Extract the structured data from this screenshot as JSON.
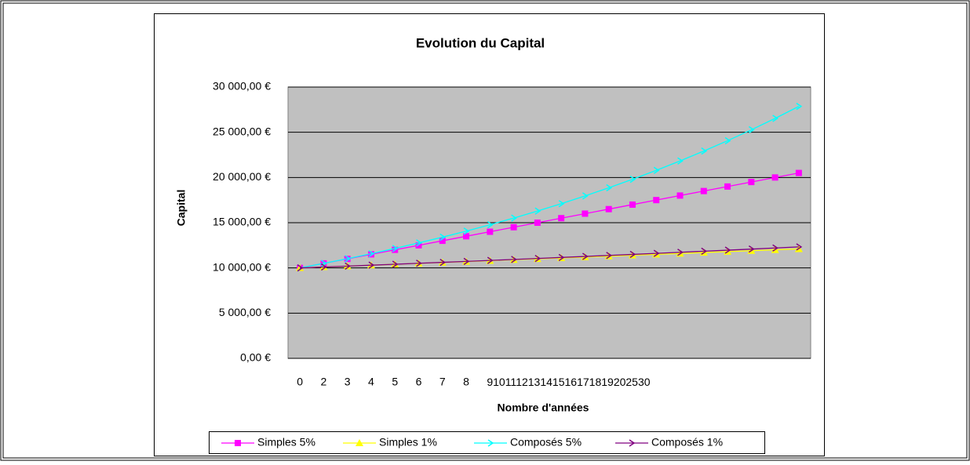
{
  "chart_data": {
    "type": "line",
    "title": "Evolution du Capital",
    "ylabel": "Capital",
    "xlabel": "Nombre d'années",
    "categories": [
      "0",
      "2",
      "3",
      "4",
      "5",
      "6",
      "7",
      "8",
      "9",
      "10",
      "11",
      "12",
      "13",
      "14",
      "15",
      "16",
      "17",
      "18",
      "19",
      "20",
      "25",
      "30"
    ],
    "series": [
      {
        "name": "Simples 5%",
        "color": "#ff00ff",
        "marker": "square",
        "values": [
          10000,
          10500,
          11000,
          11500,
          12000,
          12500,
          13000,
          13500,
          14000,
          14500,
          15000,
          15500,
          16000,
          16500,
          17000,
          17500,
          18000,
          18500,
          19000,
          19500,
          20000,
          20500
        ]
      },
      {
        "name": "Simples 1%",
        "color": "#ffff00",
        "marker": "triangle",
        "values": [
          10000,
          10100,
          10200,
          10300,
          10400,
          10500,
          10600,
          10700,
          10800,
          10900,
          11000,
          11100,
          11200,
          11300,
          11400,
          11500,
          11600,
          11700,
          11800,
          11900,
          12000,
          12100
        ]
      },
      {
        "name": "Composés 5%",
        "color": "#00ffff",
        "marker": "chevron",
        "values": [
          10000,
          10500,
          11025,
          11576,
          12155,
          12763,
          13401,
          14071,
          14775,
          15513,
          16289,
          17103,
          17959,
          18856,
          19799,
          20789,
          21829,
          22920,
          24066,
          25270,
          26533,
          27860
        ]
      },
      {
        "name": "Composés 1%",
        "color": "#800080",
        "marker": "chevron",
        "values": [
          10000,
          10100,
          10201,
          10303,
          10406,
          10510,
          10615,
          10721,
          10829,
          10937,
          11046,
          11157,
          11268,
          11381,
          11495,
          11610,
          11726,
          11843,
          11961,
          12081,
          12202,
          12324
        ]
      }
    ],
    "ylim": [
      0,
      30000
    ],
    "yticks": [
      {
        "value": 0,
        "label": "0,00 €"
      },
      {
        "value": 5000,
        "label": "5 000,00 €"
      },
      {
        "value": 10000,
        "label": "10 000,00 €"
      },
      {
        "value": 15000,
        "label": "15 000,00 €"
      },
      {
        "value": 20000,
        "label": "20 000,00 €"
      },
      {
        "value": 25000,
        "label": "25 000,00 €"
      },
      {
        "value": 30000,
        "label": "30 000,00 €"
      }
    ],
    "grid": true,
    "plot_background": "#c0c0c0",
    "legend": "bottom"
  }
}
